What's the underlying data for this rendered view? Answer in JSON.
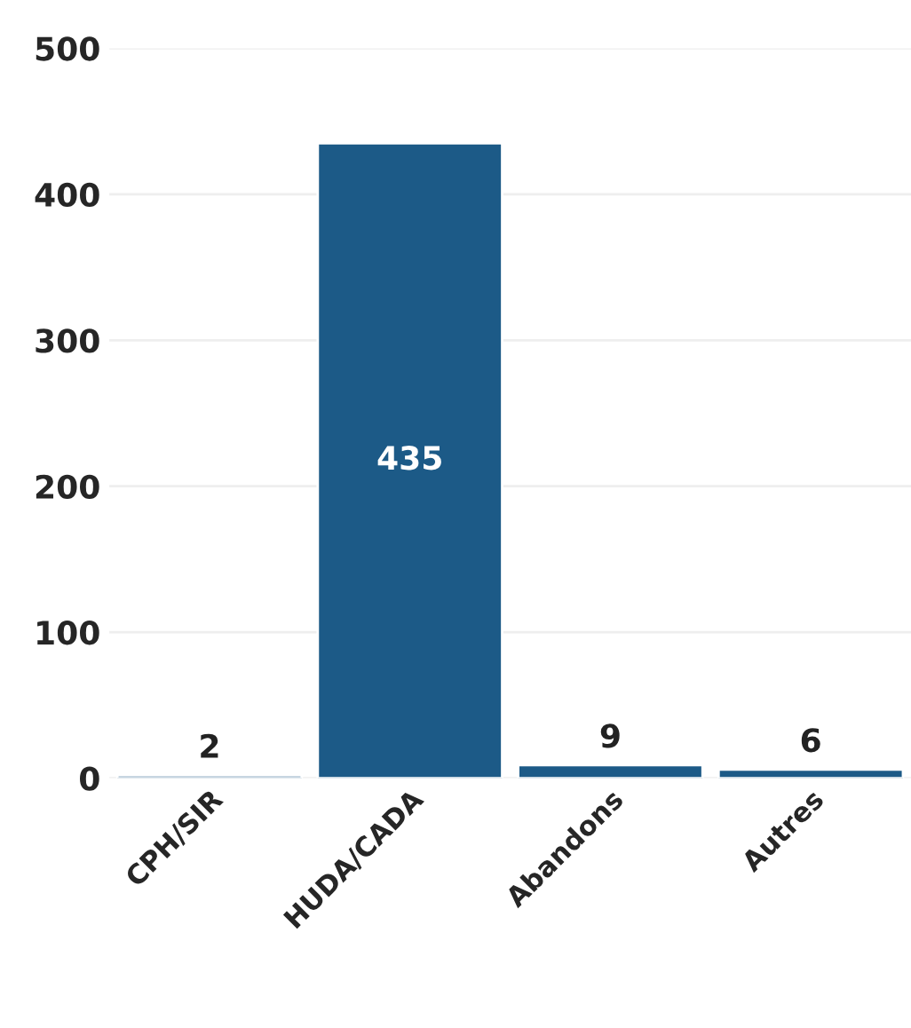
{
  "chart_data": {
    "type": "bar",
    "categories": [
      "CPH/SIR",
      "HUDA/CADA",
      "Abandons",
      "Autres"
    ],
    "values": [
      2,
      435,
      9,
      6
    ],
    "color": "#1c5a87",
    "ylim": [
      0,
      500
    ],
    "yticks": [
      0,
      100,
      200,
      300,
      400,
      500
    ],
    "grid": "y",
    "data_labels": true
  }
}
